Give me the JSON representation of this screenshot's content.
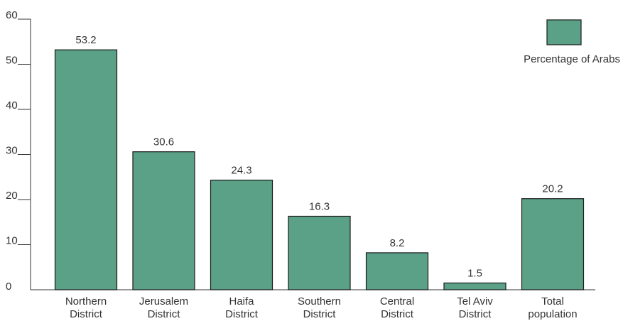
{
  "chart_data": {
    "type": "bar",
    "categories": [
      [
        "Northern",
        "District"
      ],
      [
        "Jerusalem",
        "District"
      ],
      [
        "Haifa",
        "District"
      ],
      [
        "Southern",
        "District"
      ],
      [
        "Central",
        "District"
      ],
      [
        "Tel Aviv",
        "District"
      ],
      [
        "Total",
        "population"
      ]
    ],
    "series": [
      {
        "name": "Percentage of Arabs",
        "values": [
          53.2,
          30.6,
          24.3,
          16.3,
          8.2,
          1.5,
          20.2
        ]
      }
    ],
    "data_labels": [
      "53.2",
      "30.6",
      "24.3",
      "16.3",
      "8.2",
      "1.5",
      "20.2"
    ],
    "yticks": [
      "0",
      "10",
      "20",
      "30",
      "40",
      "50",
      "60"
    ],
    "ylim": [
      0,
      60
    ],
    "grid": false,
    "legend_position": "top-right",
    "colors": {
      "bar": "#5aa188",
      "bar_stroke": "#1a1a1a",
      "axis": "#333333"
    }
  }
}
